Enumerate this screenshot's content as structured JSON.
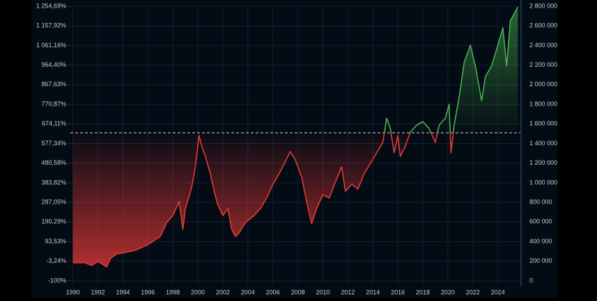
{
  "chart_data": {
    "type": "line",
    "color_above": "#4caf50",
    "color_below": "#e53935",
    "reference_line": 1510000,
    "xlim": [
      1989.8,
      2025.8
    ],
    "xticks": [
      1990,
      1992,
      1994,
      1996,
      1998,
      2000,
      2002,
      2004,
      2006,
      2008,
      2010,
      2012,
      2014,
      2016,
      2018,
      2020,
      2022,
      2024
    ],
    "ylim": [
      0,
      2800000
    ],
    "yticks": [
      {
        "value": 0,
        "label": "0"
      },
      {
        "value": 200000,
        "label": "200 000"
      },
      {
        "value": 400000,
        "label": "400 000"
      },
      {
        "value": 600000,
        "label": "600 000"
      },
      {
        "value": 800000,
        "label": "800 000"
      },
      {
        "value": 1000000,
        "label": "1 000 000"
      },
      {
        "value": 1200000,
        "label": "1 200 000"
      },
      {
        "value": 1400000,
        "label": "1 400 000"
      },
      {
        "value": 1600000,
        "label": "1 600 000"
      },
      {
        "value": 1800000,
        "label": "1 800 000"
      },
      {
        "value": 2000000,
        "label": "2 000 000"
      },
      {
        "value": 2200000,
        "label": "2 200 000"
      },
      {
        "value": 2400000,
        "label": "2 400 000"
      },
      {
        "value": 2600000,
        "label": "2 600 000"
      },
      {
        "value": 2800000,
        "label": "2 800 000"
      }
    ],
    "y2lim": [
      -100,
      1254.69
    ],
    "y2ticks": [
      {
        "value": -100,
        "label": "-100%"
      },
      {
        "value": -3.24,
        "label": "-3,24%"
      },
      {
        "value": 93.53,
        "label": "93,53%"
      },
      {
        "value": 190.29,
        "label": "190,29%"
      },
      {
        "value": 287.05,
        "label": "287,05%"
      },
      {
        "value": 383.82,
        "label": "383,82%"
      },
      {
        "value": 480.58,
        "label": "480,58%"
      },
      {
        "value": 577.34,
        "label": "577,34%"
      },
      {
        "value": 674.11,
        "label": "674,11%"
      },
      {
        "value": 770.87,
        "label": "770,87%"
      },
      {
        "value": 867.63,
        "label": "867,63%"
      },
      {
        "value": 964.4,
        "label": "964,40%"
      },
      {
        "value": 1061.16,
        "label": "1 061,16%"
      },
      {
        "value": 1157.92,
        "label": "1 157,92%"
      },
      {
        "value": 1254.69,
        "label": "1 254,69%"
      }
    ],
    "grid": true,
    "x": [
      1990,
      1991,
      1991.5,
      1992,
      1992.7,
      1993,
      1993.5,
      1994,
      1995,
      1996,
      1997,
      1997.5,
      1998,
      1998.5,
      1998.8,
      1999,
      1999.5,
      1999.8,
      2000.1,
      2000.3,
      2000.6,
      2001,
      2001.3,
      2001.6,
      2002,
      2002.4,
      2002.7,
      2003,
      2003.3,
      2003.8,
      2004.5,
      2005,
      2005.5,
      2006,
      2006.5,
      2007,
      2007.4,
      2007.8,
      2008.3,
      2008.7,
      2009.1,
      2009.5,
      2010,
      2010.5,
      2011,
      2011.5,
      2011.8,
      2012.3,
      2012.8,
      2013.3,
      2013.8,
      2014.3,
      2014.8,
      2015.1,
      2015.4,
      2015.7,
      2016,
      2016.2,
      2016.6,
      2017,
      2017.5,
      2018,
      2018.5,
      2019,
      2019.3,
      2019.8,
      2020.1,
      2020.25,
      2020.5,
      2020.9,
      2021.3,
      2021.8,
      2022.2,
      2022.7,
      2023,
      2023.5,
      2024,
      2024.4,
      2024.7,
      2025,
      2025.6
    ],
    "values": [
      184000,
      184000,
      156000,
      198000,
      142000,
      227000,
      276000,
      284000,
      312000,
      369000,
      454000,
      595000,
      666000,
      808000,
      525000,
      737000,
      950000,
      1163000,
      1482000,
      1375000,
      1269000,
      1092000,
      914000,
      773000,
      666000,
      737000,
      525000,
      454000,
      489000,
      595000,
      666000,
      737000,
      844000,
      985000,
      1092000,
      1219000,
      1318000,
      1233000,
      1056000,
      808000,
      581000,
      737000,
      879000,
      844000,
      1007000,
      1163000,
      914000,
      985000,
      936000,
      1092000,
      1198000,
      1304000,
      1411000,
      1659000,
      1553000,
      1304000,
      1482000,
      1269000,
      1375000,
      1517000,
      1588000,
      1623000,
      1553000,
      1411000,
      1588000,
      1659000,
      1801000,
      1304000,
      1588000,
      1872000,
      2226000,
      2403000,
      2191000,
      1836000,
      2084000,
      2191000,
      2403000,
      2580000,
      2191000,
      2651000,
      2793000
    ]
  }
}
